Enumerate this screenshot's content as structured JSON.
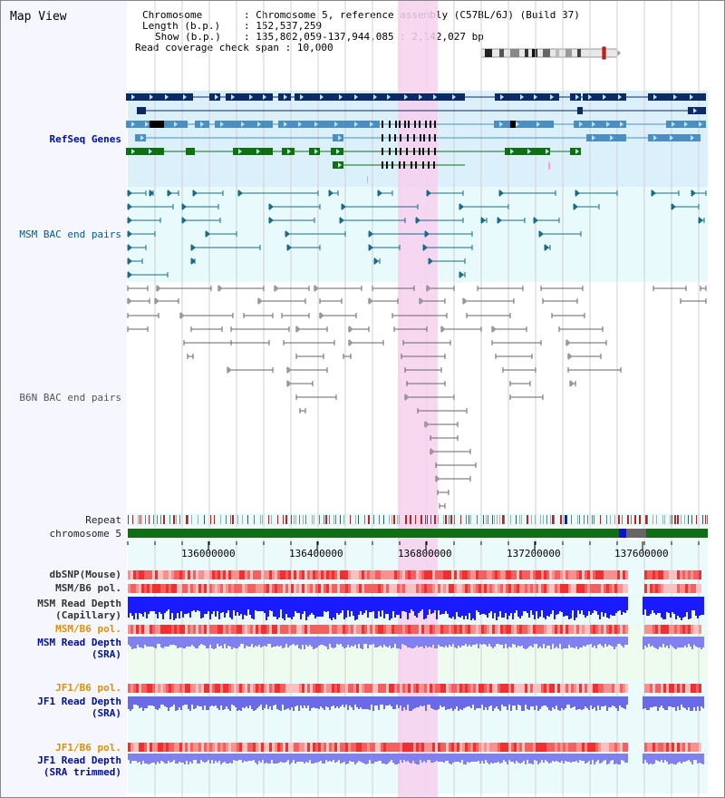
{
  "header": {
    "app_title": "Map View",
    "chromosome_label": "Chromosome",
    "chromosome_value": "Chromosome 5, reference assembly (C57BL/6J) (Build 37)",
    "length_label": "Length (b.p.)",
    "length_value": "152,537,259",
    "show_label": "Show (b.p.)",
    "show_value": "135,802,059-137,944,085 : 2,142,027 bp",
    "coverage_label": "Read coverage check span",
    "coverage_value": "10,000"
  },
  "tracks": {
    "refseq": "RefSeq Genes",
    "msm_bac": "MSM BAC end pairs",
    "b6n_bac": "B6N BAC end pairs",
    "repeat": "Repeat",
    "chromosome": "chromosome 5",
    "dbsnp": "dbSNP(Mouse)",
    "msm_b6_pol_1": "MSM/B6 pol.",
    "msm_read_depth_cap_1": "MSM Read Depth",
    "msm_read_depth_cap_2": "(Capillary)",
    "msm_b6_pol_2": "MSM/B6 pol.",
    "msm_read_depth_sra_1": "MSM Read Depth",
    "msm_read_depth_sra_2": "(SRA)",
    "jf1_b6_pol_1": "JF1/B6 pol.",
    "jf1_read_depth_sra_1": "JF1 Read Depth",
    "jf1_read_depth_sra_2": "(SRA)",
    "jf1_b6_pol_2": "JF1/B6 pol.",
    "jf1_read_depth_trim_1": "JF1 Read Depth",
    "jf1_read_depth_trim_2": "(SRA trimmed)"
  },
  "axis": {
    "ticks": [
      "136000000",
      "136400000",
      "136800000",
      "137200000",
      "137600000"
    ]
  },
  "colors": {
    "refseq_navy": "#0b2a66",
    "refseq_blue": "#4a8fbf",
    "refseq_green": "#107010",
    "msm_bac": "#1a6a8a",
    "b6n_bac": "#666666",
    "highlight": "#f7d0ef",
    "chromosome_green": "#0f6f14",
    "snp_red": "#f05050",
    "depth_blue": "#1a1aff",
    "depth_light_blue": "#8080f0",
    "label_blue": "#00109e",
    "label_orange": "#e09000",
    "label_teal": "#005b8e"
  },
  "icons": {
    "direction_arrow": "triangle-arrow",
    "ideogram_marker": "red-bar"
  }
}
